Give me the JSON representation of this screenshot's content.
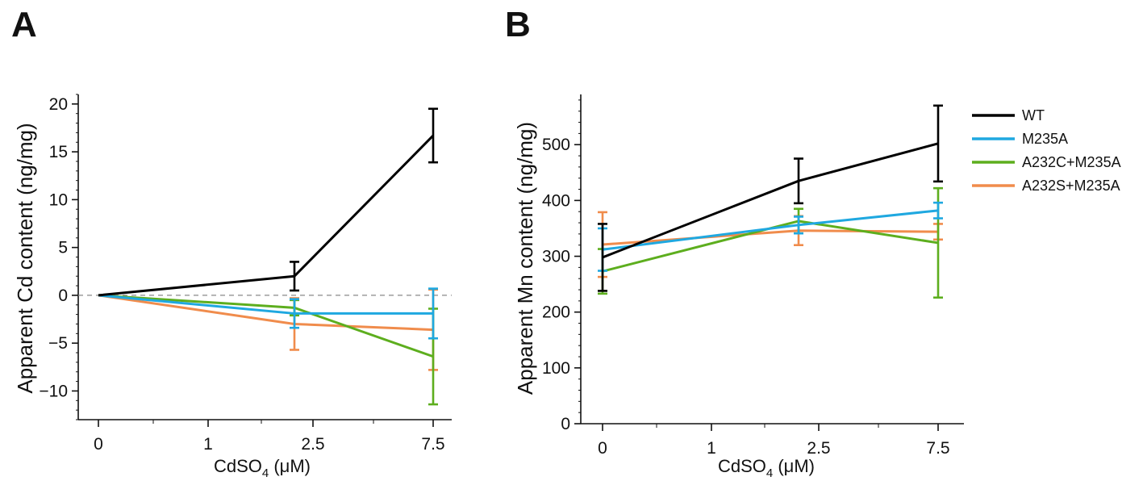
{
  "chart_data": [
    {
      "type": "line",
      "panel": "A",
      "title": "",
      "xlabel": {
        "base": "CdSO",
        "sub": "4",
        "tail": " (μM)"
      },
      "ylabel": "Apparent Cd content (ng/mg)",
      "categories": [
        "0",
        "1",
        "2.5",
        "7.5"
      ],
      "ylim": [
        -13,
        21
      ],
      "yticks": [
        -10,
        -5,
        0,
        5,
        10,
        15,
        20
      ],
      "yticklabels": [
        "−10",
        "−5",
        "0",
        "5",
        "10",
        "15",
        "20"
      ],
      "zero_line": true,
      "grid": false,
      "series": [
        {
          "name": "WT",
          "color": "#000000",
          "x": [
            0,
            2.5,
            7.5
          ],
          "y": [
            0,
            2.0,
            16.7
          ],
          "err": [
            0,
            1.5,
            2.8
          ]
        },
        {
          "name": "M235A",
          "color": "#1FA8E0",
          "x": [
            0,
            2.5,
            7.5
          ],
          "y": [
            0,
            -1.9,
            -1.9
          ],
          "err": [
            0,
            1.5,
            2.6
          ]
        },
        {
          "name": "A232C+M235A",
          "color": "#5DAE1E",
          "x": [
            0,
            2.5,
            7.5
          ],
          "y": [
            0,
            -1.3,
            -6.4
          ],
          "err": [
            0,
            0.8,
            5.0
          ]
        },
        {
          "name": "A232S+M235A",
          "color": "#F08C4C",
          "x": [
            0,
            2.5,
            7.5
          ],
          "y": [
            0,
            -3.0,
            -3.6
          ],
          "err": [
            0,
            2.7,
            4.2
          ]
        }
      ]
    },
    {
      "type": "line",
      "panel": "B",
      "title": "",
      "xlabel": {
        "base": "CdSO",
        "sub": "4",
        "tail": " (μM)"
      },
      "ylabel": "Apparent Mn content (ng/mg)",
      "categories": [
        "0",
        "1",
        "2.5",
        "7.5"
      ],
      "ylim": [
        0,
        590
      ],
      "yticks": [
        0,
        100,
        200,
        300,
        400,
        500
      ],
      "yticklabels": [
        "0",
        "100",
        "200",
        "300",
        "400",
        "500"
      ],
      "zero_line": false,
      "grid": false,
      "legend": {
        "location": "right",
        "entries": [
          "WT",
          "M235A",
          "A232C+M235A",
          "A232S+M235A"
        ]
      },
      "series": [
        {
          "name": "WT",
          "color": "#000000",
          "x": [
            0,
            2.5,
            7.5
          ],
          "y": [
            298,
            435,
            502
          ],
          "err": [
            60,
            40,
            68
          ]
        },
        {
          "name": "M235A",
          "color": "#1FA8E0",
          "x": [
            0,
            2.5,
            7.5
          ],
          "y": [
            312,
            356,
            382
          ],
          "err": [
            38,
            15,
            14
          ]
        },
        {
          "name": "A232C+M235A",
          "color": "#5DAE1E",
          "x": [
            0,
            2.5,
            7.5
          ],
          "y": [
            273,
            363,
            324
          ],
          "err": [
            40,
            22,
            98
          ]
        },
        {
          "name": "A232S+M235A",
          "color": "#F08C4C",
          "x": [
            0,
            2.5,
            7.5
          ],
          "y": [
            321,
            346,
            344
          ],
          "err": [
            58,
            26,
            14
          ]
        }
      ]
    }
  ]
}
